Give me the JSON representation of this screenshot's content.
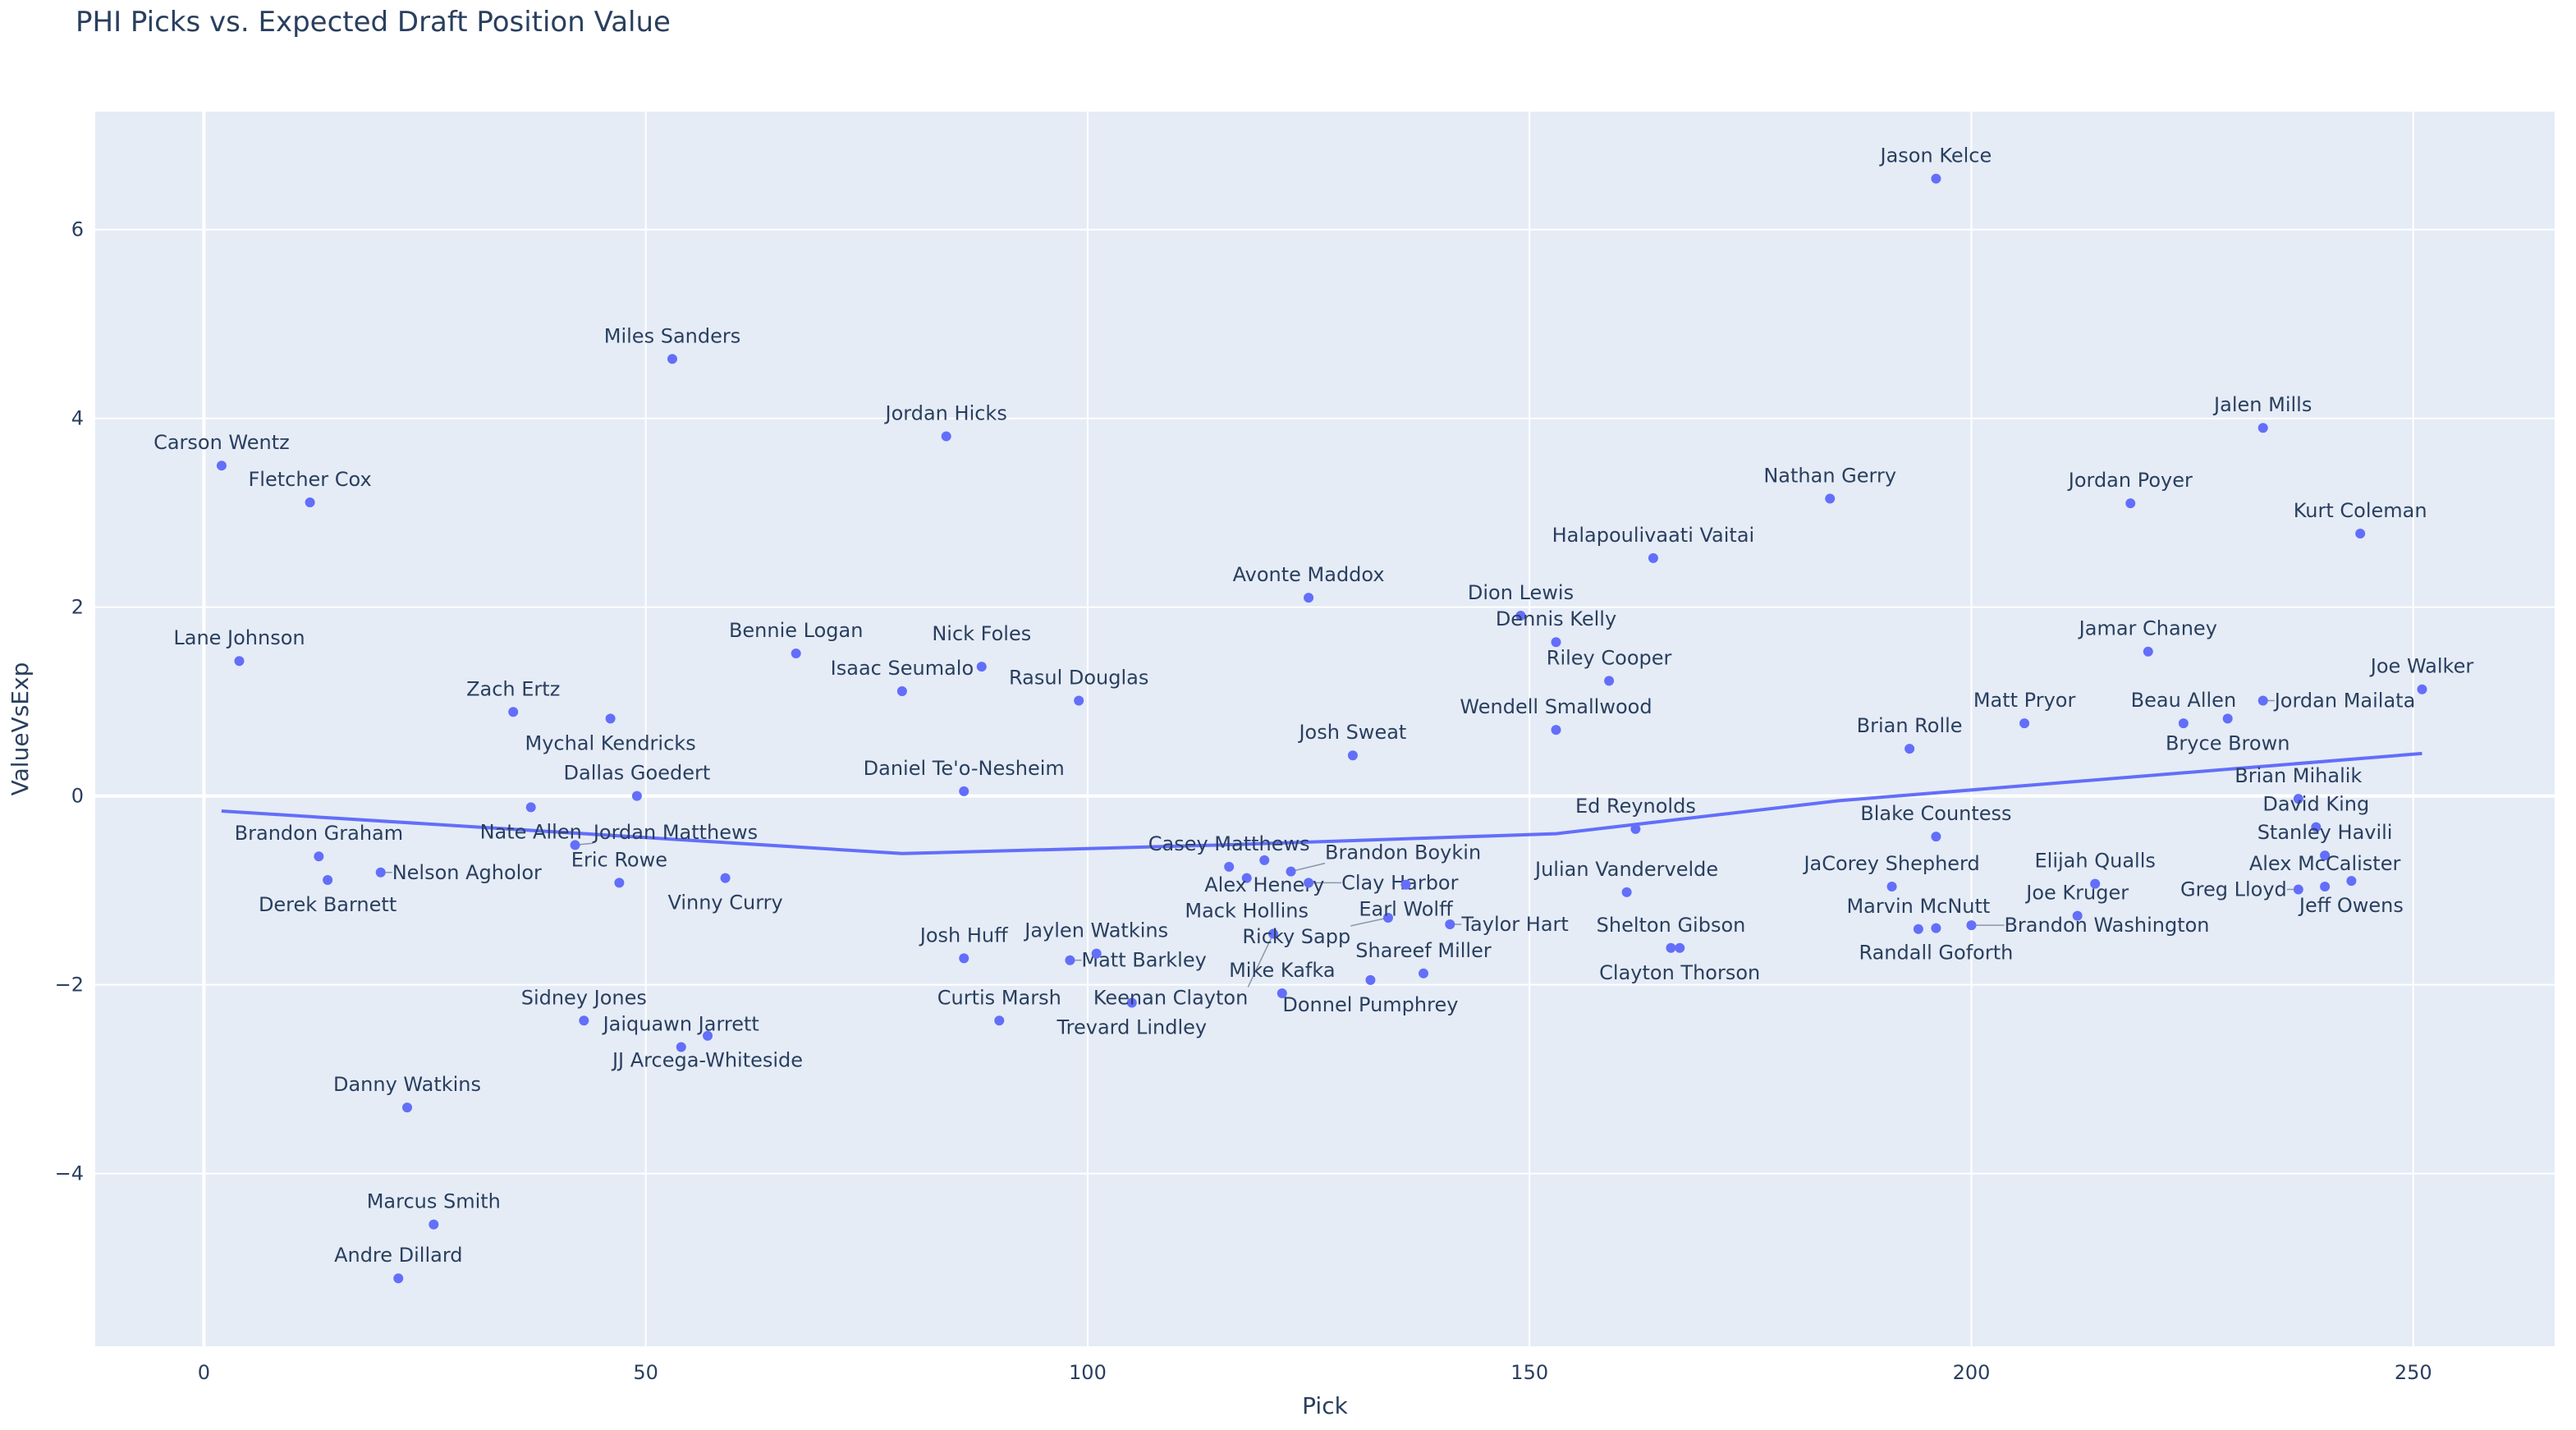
{
  "chart_data": {
    "type": "scatter",
    "title": "PHI Picks vs. Expected Draft Position Value",
    "xlabel": "Pick",
    "ylabel": "ValueVsExp",
    "xlim": [
      -12.3,
      266
    ],
    "ylim": [
      -5.83,
      7.25
    ],
    "x_ticks": [
      0,
      50,
      100,
      150,
      200,
      250
    ],
    "y_ticks": [
      -4,
      -2,
      0,
      2,
      4,
      6
    ],
    "x_tick_labels": [
      "0",
      "50",
      "100",
      "150",
      "200",
      "250"
    ],
    "y_tick_labels": [
      "−4",
      "−2",
      "0",
      "2",
      "4",
      "6"
    ],
    "grid": true,
    "colors": {
      "background": "#E5ECF6",
      "marker": "#636EFA",
      "line": "#636EFA",
      "text": "#2A3F5F",
      "grid": "#FFFFFF"
    },
    "points": [
      {
        "name": "Carson Wentz",
        "x": 2,
        "y": 3.5
      },
      {
        "name": "Lane Johnson",
        "x": 4,
        "y": 1.43
      },
      {
        "name": "Fletcher Cox",
        "x": 12,
        "y": 3.11
      },
      {
        "name": "Brandon Graham",
        "x": 13,
        "y": -0.64
      },
      {
        "name": "Derek Barnett",
        "x": 14,
        "y": -0.89
      },
      {
        "name": "Nelson Agholor",
        "x": 20,
        "y": -0.81
      },
      {
        "name": "Andre Dillard",
        "x": 22,
        "y": -5.11
      },
      {
        "name": "Danny Watkins",
        "x": 23,
        "y": -3.3
      },
      {
        "name": "Marcus Smith",
        "x": 26,
        "y": -4.54
      },
      {
        "name": "Zach Ertz",
        "x": 35,
        "y": 0.89
      },
      {
        "name": "Nate Allen",
        "x": 37,
        "y": -0.12
      },
      {
        "name": "Jordan Matthews",
        "x": 42,
        "y": -0.52
      },
      {
        "name": "Sidney Jones",
        "x": 43,
        "y": -2.38
      },
      {
        "name": "Mychal Kendricks",
        "x": 46,
        "y": 0.82
      },
      {
        "name": "Eric Rowe",
        "x": 47,
        "y": -0.92
      },
      {
        "name": "Dallas Goedert",
        "x": 49,
        "y": 0.0
      },
      {
        "name": "Miles Sanders",
        "x": 53,
        "y": 4.63
      },
      {
        "name": "Jaiquawn Jarrett",
        "x": 54,
        "y": -2.66
      },
      {
        "name": "JJ Arcega-Whiteside",
        "x": 57,
        "y": -2.54
      },
      {
        "name": "Vinny Curry",
        "x": 59,
        "y": -0.87
      },
      {
        "name": "Bennie Logan",
        "x": 67,
        "y": 1.51
      },
      {
        "name": "Isaac Seumalo",
        "x": 79,
        "y": 1.11
      },
      {
        "name": "Jordan Hicks",
        "x": 84,
        "y": 3.81
      },
      {
        "name": "Josh Huff",
        "x": 86,
        "y": -1.72
      },
      {
        "name": "Daniel Te'o-Nesheim",
        "x": 86,
        "y": 0.05
      },
      {
        "name": "Nick Foles",
        "x": 88,
        "y": 1.37
      },
      {
        "name": "Curtis Marsh",
        "x": 90,
        "y": -2.38
      },
      {
        "name": "Matt Barkley",
        "x": 98,
        "y": -1.74
      },
      {
        "name": "Rasul Douglas",
        "x": 99,
        "y": 1.01
      },
      {
        "name": "Jaylen Watkins",
        "x": 101,
        "y": -1.67
      },
      {
        "name": "Trevard Lindley",
        "x": 105,
        "y": -2.19
      },
      {
        "name": "Casey Matthews",
        "x": 116,
        "y": -0.75
      },
      {
        "name": "Mack Hollins",
        "x": 118,
        "y": -0.87
      },
      {
        "name": "Alex Henery",
        "x": 120,
        "y": -0.68
      },
      {
        "name": "Keenan Clayton",
        "x": 121,
        "y": -1.46
      },
      {
        "name": "Mike Kafka",
        "x": 122,
        "y": -2.09
      },
      {
        "name": "Brandon Boykin",
        "x": 123,
        "y": -0.8
      },
      {
        "name": "Clay Harbor",
        "x": 125,
        "y": -0.92
      },
      {
        "name": "Avonte Maddox",
        "x": 125,
        "y": 2.1
      },
      {
        "name": "Josh Sweat",
        "x": 130,
        "y": 0.43
      },
      {
        "name": "Donnel Pumphrey",
        "x": 132,
        "y": -1.95
      },
      {
        "name": "Ricky Sapp",
        "x": 134,
        "y": -1.29
      },
      {
        "name": "Earl Wolff",
        "x": 136,
        "y": -0.94
      },
      {
        "name": "Shareef Miller",
        "x": 138,
        "y": -1.88
      },
      {
        "name": "Taylor Hart",
        "x": 141,
        "y": -1.36
      },
      {
        "name": "Dion Lewis",
        "x": 149,
        "y": 1.91
      },
      {
        "name": "Dennis Kelly",
        "x": 153,
        "y": 1.63
      },
      {
        "name": "Wendell Smallwood",
        "x": 153,
        "y": 0.7
      },
      {
        "name": "Riley Cooper",
        "x": 159,
        "y": 1.22
      },
      {
        "name": "Julian Vandervelde",
        "x": 161,
        "y": -1.02
      },
      {
        "name": "Ed Reynolds",
        "x": 162,
        "y": -0.35
      },
      {
        "name": "Halapoulivaati Vaitai",
        "x": 164,
        "y": 2.52
      },
      {
        "name": "Shelton Gibson",
        "x": 166,
        "y": -1.61
      },
      {
        "name": "Clayton Thorson",
        "x": 167,
        "y": -1.61
      },
      {
        "name": "Nathan Gerry",
        "x": 184,
        "y": 3.15
      },
      {
        "name": "JaCorey Shepherd",
        "x": 191,
        "y": -0.96
      },
      {
        "name": "Brian Rolle",
        "x": 193,
        "y": 0.5
      },
      {
        "name": "Marvin McNutt",
        "x": 194,
        "y": -1.41
      },
      {
        "name": "Jason Kelce",
        "x": 196,
        "y": 6.54
      },
      {
        "name": "Randall Goforth",
        "x": 196,
        "y": -1.4
      },
      {
        "name": "Blake Countess",
        "x": 196,
        "y": -0.43
      },
      {
        "name": "Brandon Washington",
        "x": 200,
        "y": -1.37
      },
      {
        "name": "Matt Pryor",
        "x": 206,
        "y": 0.77
      },
      {
        "name": "Joe Kruger",
        "x": 212,
        "y": -1.27
      },
      {
        "name": "Elijah Qualls",
        "x": 214,
        "y": -0.93
      },
      {
        "name": "Jordan Poyer",
        "x": 218,
        "y": 3.1
      },
      {
        "name": "Jamar Chaney",
        "x": 220,
        "y": 1.53
      },
      {
        "name": "Beau Allen",
        "x": 224,
        "y": 0.77
      },
      {
        "name": "Bryce Brown",
        "x": 229,
        "y": 0.82
      },
      {
        "name": "Jordan Mailata",
        "x": 233,
        "y": 1.01
      },
      {
        "name": "Jalen Mills",
        "x": 233,
        "y": 3.9
      },
      {
        "name": "Brian Mihalik",
        "x": 237,
        "y": -0.03
      },
      {
        "name": "Greg Lloyd",
        "x": 237,
        "y": -0.99
      },
      {
        "name": "David King",
        "x": 239,
        "y": -0.33
      },
      {
        "name": "Stanley Havili",
        "x": 240,
        "y": -0.63
      },
      {
        "name": "Alex McCalister",
        "x": 240,
        "y": -0.96
      },
      {
        "name": "Jeff Owens",
        "x": 243,
        "y": -0.9
      },
      {
        "name": "Kurt Coleman",
        "x": 244,
        "y": 2.78
      },
      {
        "name": "Joe Walker",
        "x": 251,
        "y": 1.13
      }
    ],
    "trend_line": {
      "x": [
        2,
        79,
        115,
        153,
        185,
        251
      ],
      "y": [
        -0.16,
        -0.61,
        -0.52,
        -0.4,
        -0.05,
        0.45
      ]
    }
  }
}
